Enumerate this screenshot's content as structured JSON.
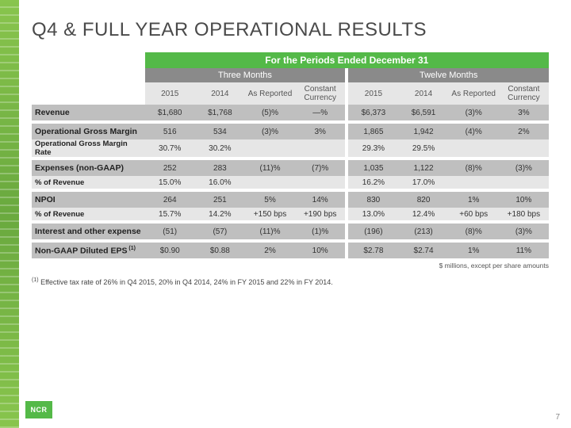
{
  "title": "Q4 & FULL YEAR OPERATIONAL RESULTS",
  "colors": {
    "green": "#54b948",
    "gray_header": "#8a8a8a",
    "band_dark": "#bfbfbf",
    "band_light": "#e6e6e6",
    "text": "#333333"
  },
  "header": {
    "main": "For the Periods Ended December 31",
    "left": "Three Months",
    "right": "Twelve Months",
    "cols": [
      "2015",
      "2014",
      "As Reported",
      "Constant Currency"
    ]
  },
  "rows": [
    {
      "label": "Revenue",
      "style": "band1",
      "vals": [
        "$1,680",
        "$1,768",
        "(5)%",
        "—%",
        "$6,373",
        "$6,591",
        "(3)%",
        "3%"
      ]
    },
    {
      "gap": true
    },
    {
      "label": "Operational Gross Margin",
      "style": "band1",
      "vals": [
        "516",
        "534",
        "(3)%",
        "3%",
        "1,865",
        "1,942",
        "(4)%",
        "2%"
      ]
    },
    {
      "label": "Operational Gross Margin Rate",
      "style": "band2",
      "sub": true,
      "vals": [
        "30.7%",
        "30.2%",
        "",
        "",
        "29.3%",
        "29.5%",
        "",
        ""
      ]
    },
    {
      "gap": true
    },
    {
      "label": "Expenses (non-GAAP)",
      "style": "band1",
      "vals": [
        "252",
        "283",
        "(11)%",
        "(7)%",
        "1,035",
        "1,122",
        "(8)%",
        "(3)%"
      ]
    },
    {
      "label": "% of Revenue",
      "style": "band2",
      "sub": true,
      "vals": [
        "15.0%",
        "16.0%",
        "",
        "",
        "16.2%",
        "17.0%",
        "",
        ""
      ]
    },
    {
      "gap": true
    },
    {
      "label": "NPOI",
      "style": "band1",
      "vals": [
        "264",
        "251",
        "5%",
        "14%",
        "830",
        "820",
        "1%",
        "10%"
      ]
    },
    {
      "label": "% of Revenue",
      "style": "band2",
      "sub": true,
      "vals": [
        "15.7%",
        "14.2%",
        "+150 bps",
        "+190 bps",
        "13.0%",
        "12.4%",
        "+60 bps",
        "+180 bps"
      ]
    },
    {
      "gap": true
    },
    {
      "label": "Interest and other expense",
      "style": "band1",
      "vals": [
        "(51)",
        "(57)",
        "(11)%",
        "(1)%",
        "(196)",
        "(213)",
        "(8)%",
        "(3)%"
      ]
    },
    {
      "gap": true
    },
    {
      "label": "Non-GAAP Diluted EPS",
      "sup": "(1)",
      "style": "band1",
      "vals": [
        "$0.90",
        "$0.88",
        "2%",
        "10%",
        "$2.78",
        "$2.74",
        "1%",
        "11%"
      ]
    }
  ],
  "footnote_right": "$ millions, except per share amounts",
  "footnote_left_sup": "(1)",
  "footnote_left": " Effective tax rate of 26% in Q4 2015, 20% in Q4 2014, 24% in FY 2015 and 22% in FY 2014.",
  "page_number": "7",
  "logo_text": "NCR",
  "layout": {
    "label_col_width": 140,
    "data_col_width": 62,
    "gap_col_width": 4
  }
}
